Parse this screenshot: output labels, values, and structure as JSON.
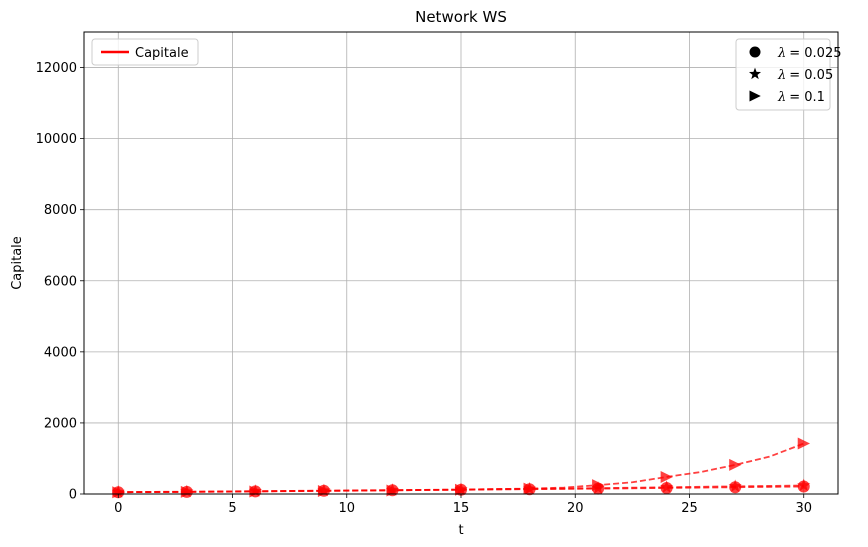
{
  "chart_data": {
    "type": "line",
    "title": "Network WS",
    "xlabel": "t",
    "ylabel": "Capitale",
    "xlim": [
      -1.5,
      31.5
    ],
    "ylim": [
      0,
      13000
    ],
    "xticks": [
      0,
      5,
      10,
      15,
      20,
      25,
      30
    ],
    "yticks": [
      0,
      2000,
      4000,
      6000,
      8000,
      10000,
      12000
    ],
    "grid": true,
    "color": "#ff0000",
    "legend_lines": {
      "placement": "top-left",
      "label": "Capitale"
    },
    "legend_markers": {
      "placement": "top-right",
      "entries": [
        {
          "marker": "circle",
          "symbol": "λ",
          "value": "= 0.025"
        },
        {
          "marker": "star",
          "symbol": "λ",
          "value": "= 0.05"
        },
        {
          "marker": "triangle-right",
          "symbol": "λ",
          "value": "= 0.1"
        }
      ]
    },
    "series": [
      {
        "lambda": "0.025",
        "marker": "circle",
        "style": "dashed",
        "x": [
          0,
          3,
          6,
          9,
          12,
          15,
          18,
          21,
          24,
          27,
          30
        ],
        "y": [
          50,
          60,
          75,
          90,
          105,
          120,
          135,
          150,
          170,
          190,
          210
        ],
        "marker_every": 3
      },
      {
        "lambda": "0.05",
        "marker": "star",
        "style": "dashed",
        "x": [
          0,
          3,
          6,
          9,
          12,
          15,
          18,
          21,
          24,
          27,
          30
        ],
        "y": [
          55,
          65,
          80,
          95,
          110,
          125,
          145,
          165,
          190,
          215,
          240
        ],
        "marker_every": 3
      },
      {
        "lambda": "0.1",
        "marker": "triangle-right",
        "style": "dashed",
        "x": [
          0,
          1.5,
          3,
          4.5,
          6,
          7.5,
          9,
          10.5,
          12,
          13.5,
          15,
          16.5,
          18,
          19.5,
          21,
          22.5,
          24,
          25.5,
          27,
          28.5,
          30
        ],
        "y": [
          50,
          55,
          60,
          65,
          70,
          80,
          85,
          95,
          100,
          115,
          120,
          140,
          150,
          180,
          250,
          330,
          480,
          620,
          820,
          1050,
          1420
        ],
        "marker_x": [
          0,
          3,
          6,
          9,
          12,
          15,
          18,
          21,
          24,
          27,
          30
        ]
      }
    ]
  }
}
